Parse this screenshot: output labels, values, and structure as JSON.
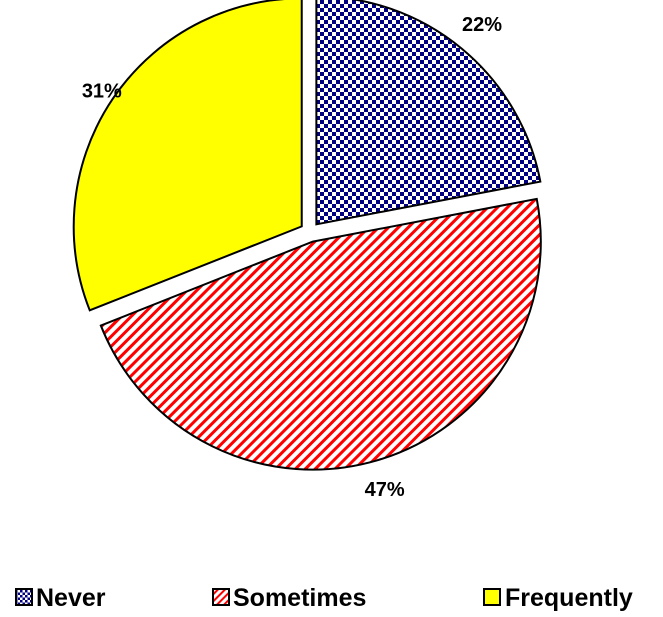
{
  "chart_data": {
    "type": "pie",
    "title": "",
    "legend_position": "bottom",
    "slices": [
      {
        "label": "Never",
        "value": 22,
        "display": "22%",
        "color": "#000080",
        "pattern": "checker"
      },
      {
        "label": "Sometimes",
        "value": 47,
        "display": "47%",
        "color": "#ff0000",
        "pattern": "diagonal-stripes"
      },
      {
        "label": "Frequently",
        "value": 31,
        "display": "31%",
        "color": "#ffff00",
        "pattern": "solid"
      }
    ]
  }
}
